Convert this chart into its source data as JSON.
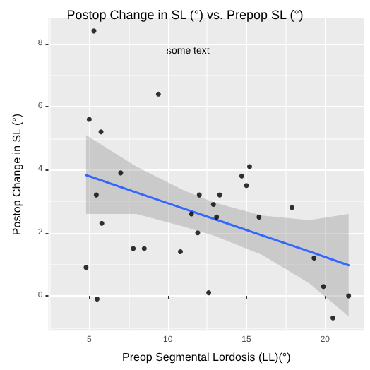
{
  "chart_data": {
    "type": "scatter",
    "title": "Postop Change in SL (°) vs. Prepop SL (°)",
    "xlabel": "Preop Segmental Lordosis (LL)(°)",
    "ylabel": "Postop Change in SL (°)",
    "annotations": [
      "some text"
    ],
    "x": [
      5.3,
      9.4,
      5.0,
      5.75,
      7.0,
      15.2,
      14.7,
      15.0,
      5.45,
      12.0,
      13.3,
      12.9,
      17.9,
      11.5,
      13.1,
      15.8,
      5.8,
      11.9,
      7.8,
      8.5,
      10.8,
      19.3,
      4.8,
      19.9,
      12.6,
      21.5,
      5.5,
      20.5
    ],
    "series": [
      {
        "color": "#000000",
        "marker": "circle",
        "values": [
          8.4,
          6.4,
          5.6,
          5.2,
          3.9,
          4.1,
          3.8,
          3.5,
          3.2,
          3.2,
          3.2,
          2.9,
          2.8,
          2.6,
          2.5,
          2.5,
          2.3,
          2.0,
          1.5,
          1.5,
          1.4,
          1.2,
          0.9,
          0.3,
          0.1,
          0.0,
          -0.1,
          -0.7
        ]
      },
      {
        "type": "line",
        "color": "#3366ff",
        "x": [
          4.8,
          8,
          11,
          13,
          16,
          19,
          21.5
        ],
        "values": [
          3.83,
          3.28,
          2.77,
          2.43,
          1.92,
          1.41,
          0.97
        ],
        "lower": [
          2.6,
          2.6,
          2.2,
          1.9,
          1.3,
          0.4,
          -0.65
        ],
        "upper": [
          5.1,
          4.1,
          3.35,
          2.95,
          2.55,
          2.4,
          2.6
        ]
      }
    ],
    "xlim": [
      2.4,
      22.5
    ],
    "ylim": [
      -1.1,
      8.8
    ],
    "xticks": [
      5,
      10,
      15,
      20
    ],
    "yticks": [
      0,
      2,
      4,
      6,
      8
    ],
    "grid": true
  }
}
